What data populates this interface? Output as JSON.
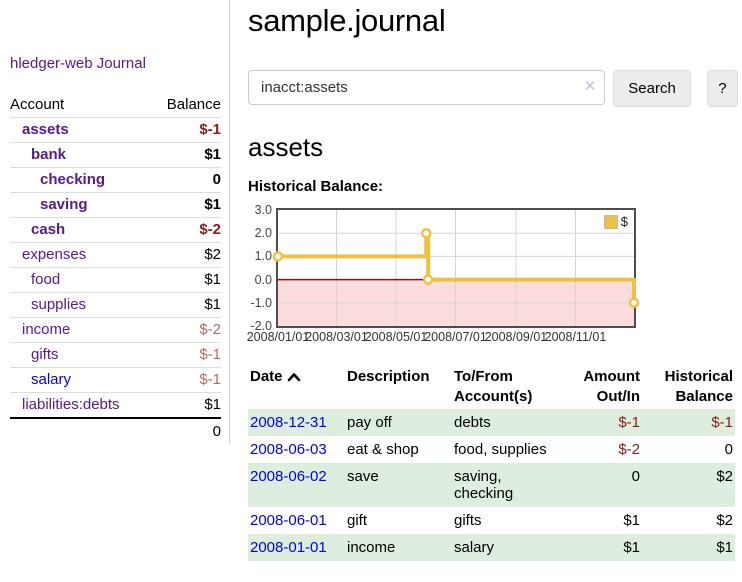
{
  "sidebar": {
    "app_title": "hledger-web",
    "journal_link": "Journal",
    "accounts_table": {
      "account_header": "Account",
      "balance_header": "Balance",
      "rows": [
        {
          "name": "assets",
          "balance": "$-1"
        },
        {
          "name": "bank",
          "balance": "$1"
        },
        {
          "name": "checking",
          "balance": "0"
        },
        {
          "name": "saving",
          "balance": "$1"
        },
        {
          "name": "cash",
          "balance": "$-2"
        },
        {
          "name": "expenses",
          "balance": "$2"
        },
        {
          "name": "food",
          "balance": "$1"
        },
        {
          "name": "supplies",
          "balance": "$1"
        },
        {
          "name": "income",
          "balance": "$-2"
        },
        {
          "name": "gifts",
          "balance": "$-1"
        },
        {
          "name": "salary",
          "balance": "$-1"
        },
        {
          "name": "liabilities:debts",
          "balance": "$1"
        }
      ],
      "total": "0"
    }
  },
  "header": {
    "title": "sample.journal"
  },
  "search": {
    "value": "inacct:assets",
    "clear_icon": "✕",
    "button_label": "Search",
    "help_label": "?"
  },
  "account_page": {
    "heading": "assets",
    "chart_label": "Historical Balance:"
  },
  "chart_data": {
    "type": "line",
    "step": true,
    "title": "Historical Balance:",
    "x_range": [
      "2008-01-01",
      "2008-12-31"
    ],
    "ylim": [
      -2,
      3
    ],
    "y_ticks": [
      3.0,
      2.0,
      1.0,
      0.0,
      -1.0,
      -2.0
    ],
    "x_ticks": [
      {
        "date": "2008-01-01",
        "label": "2008/01/01"
      },
      {
        "date": "2008-03-01",
        "label": "2008/03/01"
      },
      {
        "date": "2008-05-01",
        "label": "2008/05/01"
      },
      {
        "date": "2008-07-01",
        "label": "2008/07/01"
      },
      {
        "date": "2008-09-01",
        "label": "2008/09/01"
      },
      {
        "date": "2008-11-01",
        "label": "2008/11/01"
      }
    ],
    "series": [
      {
        "name": "$",
        "color": "#edc240",
        "points": [
          {
            "date": "2008-01-01",
            "value": 1
          },
          {
            "date": "2008-06-01",
            "value": 2
          },
          {
            "date": "2008-06-03",
            "value": 0
          },
          {
            "date": "2008-12-31",
            "value": -1
          }
        ]
      }
    ],
    "legend": {
      "label": "$",
      "position": "top-right"
    },
    "grid": true,
    "negative_region_color": "#fbdcdc",
    "zero_line_color": "#8e1414"
  },
  "register": {
    "columns": [
      {
        "label": "Date"
      },
      {
        "label": "Description"
      },
      {
        "label": "To/From\nAccount(s)"
      },
      {
        "label": "Amount\nOut/In"
      },
      {
        "label": "Historical\nBalance"
      }
    ],
    "rows": [
      {
        "date": "2008-12-31",
        "description": "pay off",
        "accounts": "debts",
        "amount": "$-1",
        "balance": "$-1"
      },
      {
        "date": "2008-06-03",
        "description": "eat & shop",
        "accounts": "food, supplies",
        "amount": "$-2",
        "balance": "0"
      },
      {
        "date": "2008-06-02",
        "description": "save",
        "accounts": "saving,\nchecking",
        "amount": "0",
        "balance": "$2"
      },
      {
        "date": "2008-06-01",
        "description": "gift",
        "accounts": "gifts",
        "amount": "$1",
        "balance": "$2"
      },
      {
        "date": "2008-01-01",
        "description": "income",
        "accounts": "salary",
        "amount": "$1",
        "balance": "$1"
      }
    ]
  },
  "colors": {
    "visited_link": "#551a8b",
    "link_blue": "#0000ee",
    "negative_strong": "#8b1a1a",
    "negative_muted": "#b26969",
    "row_stripe_green": "#deeede",
    "chart_line_gold": "#edc240",
    "chart_negative_fill": "#fbdcdc",
    "chart_zero_line": "#8e1414"
  }
}
